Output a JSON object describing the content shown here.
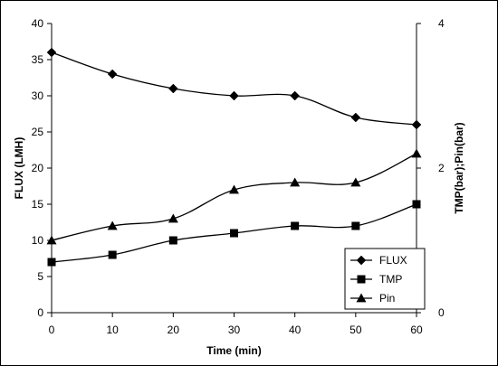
{
  "chart_data": {
    "type": "line",
    "title": "",
    "xlabel": "Time (min)",
    "ylabel": "FLUX (LMH)",
    "y2label": "TMP(bar);Pin(bar)",
    "x": [
      0,
      10,
      20,
      30,
      40,
      50,
      60
    ],
    "xlim": [
      0,
      60
    ],
    "ylim": [
      0,
      40
    ],
    "y2lim": [
      0,
      4
    ],
    "x_ticks": [
      0,
      10,
      20,
      30,
      40,
      50,
      60
    ],
    "y_ticks": [
      0,
      5,
      10,
      15,
      20,
      25,
      30,
      35,
      40
    ],
    "y2_ticks": [
      0,
      2,
      4
    ],
    "grid": false,
    "legend_position": "bottom-right",
    "series": [
      {
        "name": "FLUX",
        "axis": "left",
        "marker": "diamond",
        "values": [
          36,
          33,
          31,
          30,
          30,
          27,
          26
        ]
      },
      {
        "name": "TMP",
        "axis": "right",
        "marker": "square",
        "values": [
          0.7,
          0.8,
          1.0,
          1.1,
          1.2,
          1.2,
          1.5
        ]
      },
      {
        "name": "Pin",
        "axis": "right",
        "marker": "triangle",
        "values": [
          1.0,
          1.2,
          1.3,
          1.7,
          1.8,
          1.8,
          2.2
        ]
      }
    ],
    "colors": {
      "line": "#000000",
      "background": "#ffffff",
      "frame": "#000000"
    }
  }
}
